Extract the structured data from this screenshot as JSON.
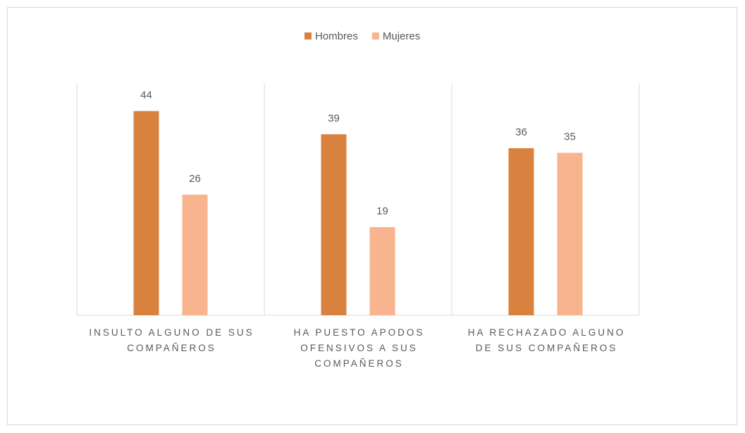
{
  "chart_data": {
    "type": "bar",
    "categories": [
      "INSULTO ALGUNO DE SUS COMPAÑEROS",
      "HA PUESTO APODOS OFENSIVOS A SUS COMPAÑEROS",
      "HA RECHAZADO ALGUNO DE SUS COMPAÑEROS"
    ],
    "series": [
      {
        "name": "Hombres",
        "color": "#d9823f",
        "values": [
          44,
          39,
          36
        ]
      },
      {
        "name": "Mujeres",
        "color": "#f8b48f",
        "values": [
          26,
          19,
          35
        ]
      }
    ],
    "ylim": [
      0,
      50
    ],
    "legend": "top"
  }
}
